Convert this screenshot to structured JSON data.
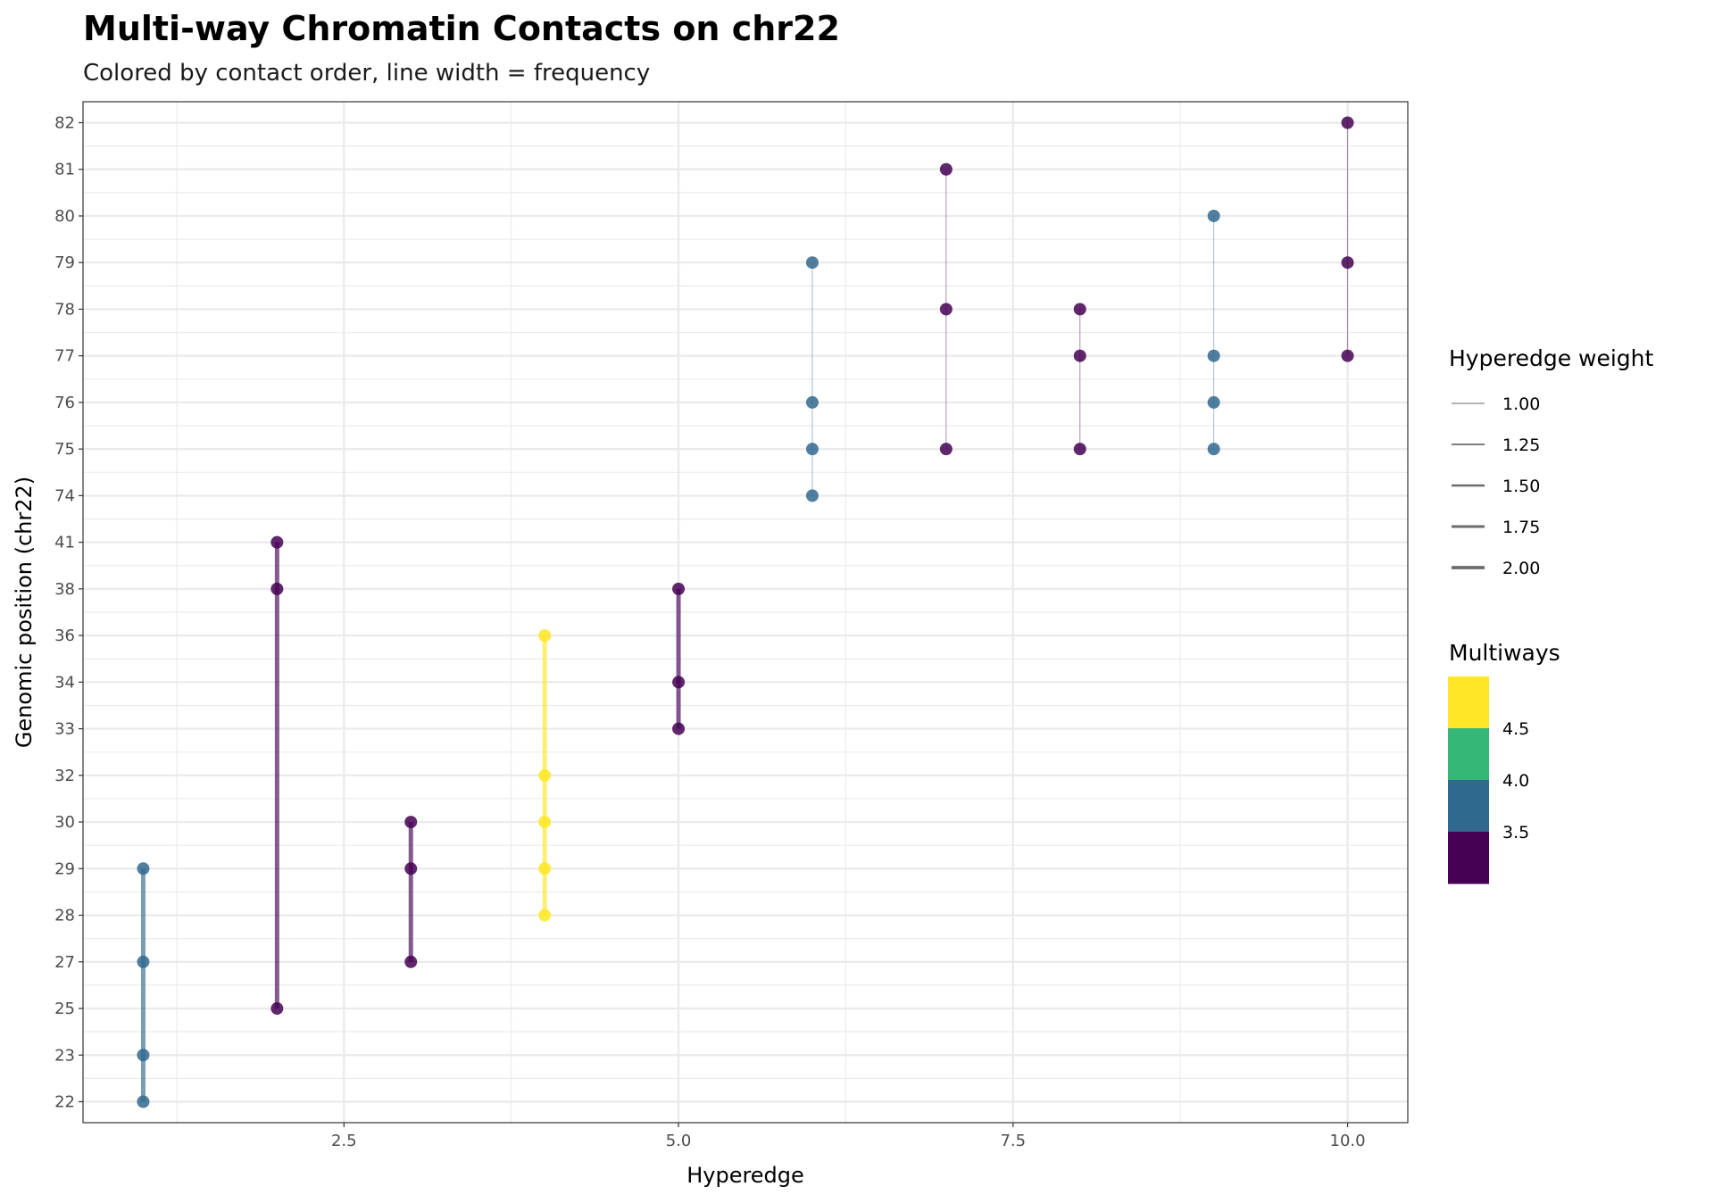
{
  "chart_data": {
    "type": "line",
    "title": "Multi-way Chromatin Contacts on chr22",
    "subtitle": "Colored by contact order, line width = frequency",
    "xlabel": "Hyperedge",
    "ylabel": "Genomic position (chr22)",
    "xlim": [
      0.55,
      10.45
    ],
    "x_ticks": [
      "2.5",
      "5.0",
      "7.5",
      "10.0"
    ],
    "x_tick_values": [
      2.5,
      5.0,
      7.5,
      10.0
    ],
    "y_scale": "discrete",
    "y_categories": [
      "22",
      "23",
      "25",
      "27",
      "28",
      "29",
      "30",
      "32",
      "33",
      "34",
      "36",
      "38",
      "41",
      "74",
      "75",
      "76",
      "77",
      "78",
      "79",
      "80",
      "81",
      "82"
    ],
    "grid": true,
    "hyperedges": [
      {
        "x": 1,
        "positions": [
          "22",
          "23",
          "27",
          "29"
        ],
        "order": 4,
        "weight": 2.0
      },
      {
        "x": 2,
        "positions": [
          "25",
          "38",
          "41"
        ],
        "order": 3,
        "weight": 2.0
      },
      {
        "x": 3,
        "positions": [
          "27",
          "29",
          "30"
        ],
        "order": 3,
        "weight": 2.0
      },
      {
        "x": 4,
        "positions": [
          "28",
          "29",
          "30",
          "32",
          "36"
        ],
        "order": 5,
        "weight": 2.0
      },
      {
        "x": 5,
        "positions": [
          "33",
          "34",
          "38"
        ],
        "order": 3,
        "weight": 2.0
      },
      {
        "x": 6,
        "positions": [
          "74",
          "75",
          "76",
          "79"
        ],
        "order": 4,
        "weight": 1.0
      },
      {
        "x": 7,
        "positions": [
          "75",
          "78",
          "81"
        ],
        "order": 3,
        "weight": 1.0
      },
      {
        "x": 8,
        "positions": [
          "75",
          "77",
          "78"
        ],
        "order": 3,
        "weight": 1.0
      },
      {
        "x": 9,
        "positions": [
          "75",
          "76",
          "77",
          "80"
        ],
        "order": 4,
        "weight": 1.0
      },
      {
        "x": 10,
        "positions": [
          "77",
          "79",
          "82"
        ],
        "order": 3,
        "weight": 1.0
      }
    ],
    "legend": {
      "placement": "right",
      "weight_title": "Hyperedge weight",
      "weight_labels": [
        "1.00",
        "1.25",
        "1.50",
        "1.75",
        "2.00"
      ],
      "weight_values": [
        1.0,
        1.25,
        1.5,
        1.75,
        2.0
      ],
      "color_title": "Multiways",
      "color_labels": [
        "4.5",
        "4.0",
        "3.5"
      ],
      "color_bins": [
        "#FDE725",
        "#35B779",
        "#31688E",
        "#440154"
      ]
    },
    "order_colors": {
      "3": "#440154",
      "4": "#31688E",
      "5": "#FDE725"
    }
  }
}
